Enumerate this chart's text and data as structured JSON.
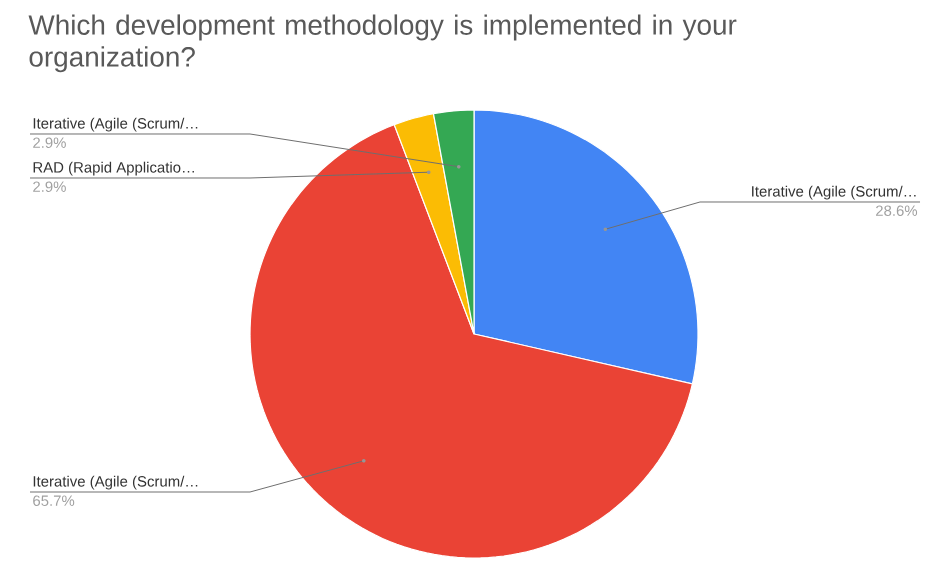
{
  "chart_data": {
    "type": "pie",
    "title": "Which development methodology is implemented in your organization?",
    "categories": [
      "Iterative (Agile (Scrum/…",
      "Iterative (Agile (Scrum/…",
      "RAD (Rapid Applicatio…",
      "Iterative (Agile (Scrum/…"
    ],
    "values": [
      28.6,
      65.7,
      2.9,
      2.9
    ],
    "value_labels": [
      "28.6%",
      "65.7%",
      "2.9%",
      "2.9%"
    ],
    "colors": [
      "#4285f4",
      "#ea4335",
      "#fbbc04",
      "#34a853"
    ]
  }
}
